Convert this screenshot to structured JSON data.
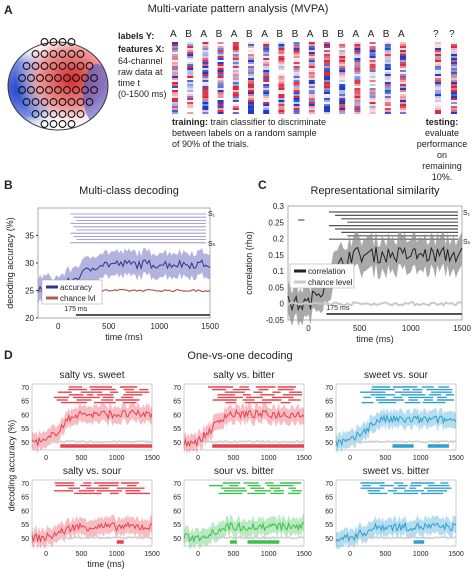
{
  "panelA": {
    "label": "A",
    "title": "Multi-variate pattern analysis (MVPA)",
    "labelsY": "labels Y:",
    "labels": [
      "A",
      "B",
      "A",
      "B",
      "A",
      "B",
      "A",
      "B",
      "B",
      "A",
      "B",
      "B",
      "A",
      "A",
      "B",
      "A"
    ],
    "testLabels": [
      "?",
      "?"
    ],
    "featuresTitle": "features X:",
    "featuresLines": [
      "64-channel",
      "raw data at",
      "time t",
      "(0-1500 ms)"
    ],
    "trainingBold": "training:",
    "trainingText1": " train classifier to discriminate",
    "trainingText2": "between labels on a random sample",
    "trainingText3": "of 90% of the trials.",
    "testingBold": "testing:",
    "testingLines": [
      "evaluate",
      "performance on",
      "remaining 10%."
    ]
  },
  "panelB": {
    "label": "B",
    "title": "Multi-class decoding",
    "ylabel": "decoding accuracy (%)",
    "xlabel": "time (ms)",
    "ticksY": [
      "35",
      "30",
      "25",
      "20"
    ],
    "ticksX": [
      "0",
      "500",
      "1000",
      "1500"
    ],
    "legend": [
      "accuracy",
      "chance lvl"
    ],
    "s1": "S₁",
    "sn": "Sₙ",
    "bar": "175 ms",
    "colors": {
      "accuracy": "#6a6ab8",
      "chance": "#c98a7a"
    }
  },
  "panelC": {
    "label": "C",
    "title": "Representational similarity",
    "ylabel": "correlation (rho)",
    "xlabel": "time (ms)",
    "ticksY": [
      "0.3",
      "0.25",
      "0.2",
      "0.15",
      "0.1",
      "0.05",
      "0",
      "-0.05"
    ],
    "ticksX": [
      "0",
      "500",
      "1000",
      "1500"
    ],
    "legend": [
      "correlation",
      "chance level"
    ],
    "s1": "S₁",
    "sn": "Sₙ",
    "bar": "175 ms"
  },
  "panelD": {
    "label": "D",
    "title": "One-vs-one decoding",
    "ylabel": "decoding accuracy (%)",
    "xlabel": "time (ms)",
    "ticksY": [
      "70",
      "65",
      "60",
      "55",
      "50"
    ],
    "ticksX": [
      "0",
      "500",
      "1000",
      "1500"
    ],
    "subplots": [
      {
        "title": "salty vs. sweet",
        "color": "#e8424f"
      },
      {
        "title": "salty vs. bitter",
        "color": "#e8424f"
      },
      {
        "title": "sweet vs. sour",
        "color": "#2f9fd0"
      },
      {
        "title": "salty vs. sour",
        "color": "#e8424f"
      },
      {
        "title": "sour vs. bitter",
        "color": "#3cc14e"
      },
      {
        "title": "sweet vs. bitter",
        "color": "#2f9fd0"
      }
    ]
  }
}
